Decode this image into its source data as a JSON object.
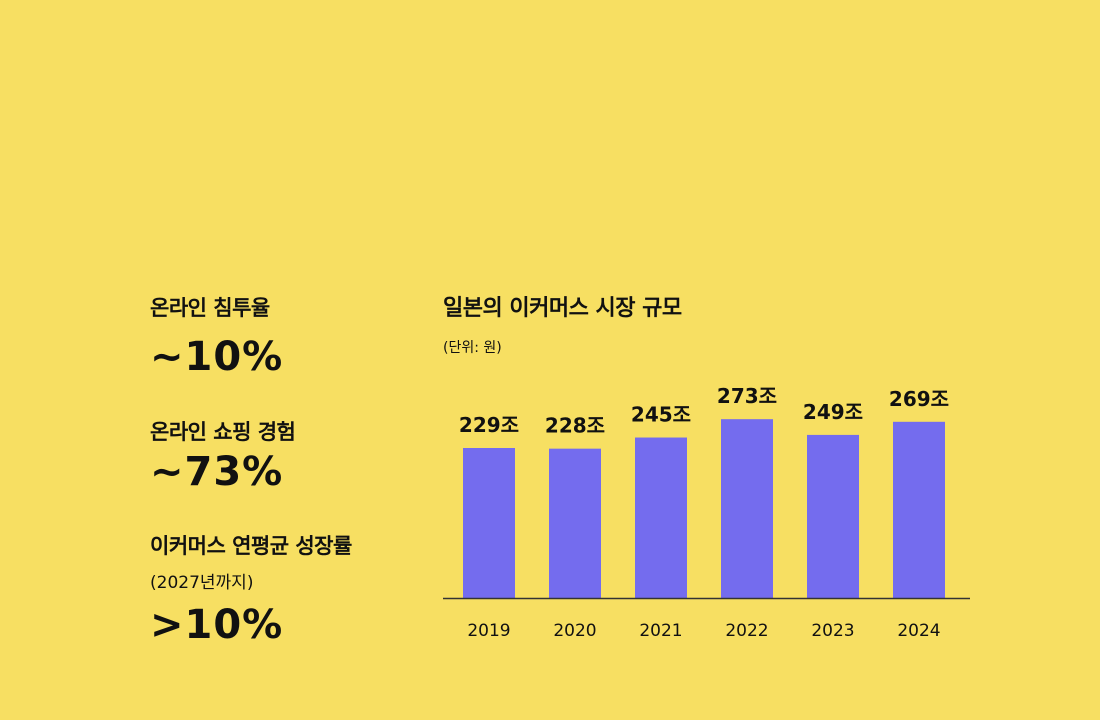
{
  "colors": {
    "background": "#F7DF62",
    "bar": "#746CEE",
    "text": "#111111",
    "axis": "#333333"
  },
  "stats": [
    {
      "label": "온라인 침투율",
      "note": "",
      "value": "~10%"
    },
    {
      "label": "온라인 쇼핑 경험",
      "note": "",
      "value": "~73%"
    },
    {
      "label": "이커머스 연평균 성장률",
      "note": "(2027년까지)",
      "value": ">10%"
    }
  ],
  "chart_data": {
    "type": "bar",
    "title": "일본의 이커머스 시장 규모",
    "unit": "(단위: 원)",
    "categories": [
      "2019",
      "2020",
      "2021",
      "2022",
      "2023",
      "2024"
    ],
    "values": [
      229,
      228,
      245,
      273,
      249,
      269
    ],
    "value_labels": [
      "229조",
      "228조",
      "245조",
      "273조",
      "249조",
      "269조"
    ],
    "ylim": [
      0,
      300
    ],
    "grid": false,
    "legend": "none"
  }
}
